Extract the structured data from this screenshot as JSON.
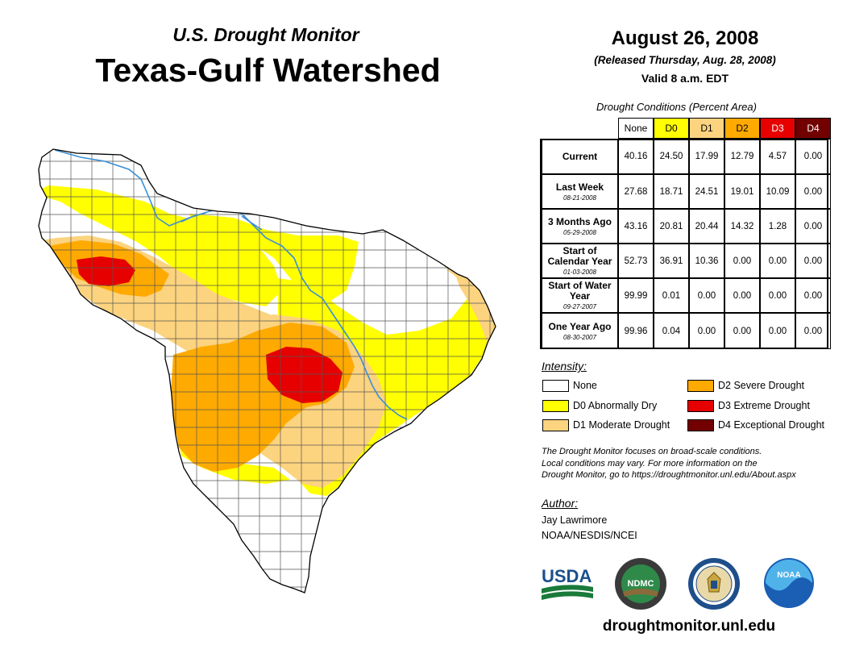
{
  "header": {
    "subtitle": "U.S. Drought Monitor",
    "title": "Texas-Gulf Watershed",
    "date": "August 26, 2008",
    "released": "(Released Thursday, Aug. 28, 2008)",
    "valid": "Valid 8 a.m. EDT"
  },
  "table": {
    "caption": "Drought Conditions (Percent Area)",
    "columns": [
      {
        "label": "None",
        "color": "#ffffff",
        "text_color": "#000000"
      },
      {
        "label": "D0",
        "color": "#ffff00",
        "text_color": "#000000"
      },
      {
        "label": "D1",
        "color": "#fcd37f",
        "text_color": "#000000"
      },
      {
        "label": "D2",
        "color": "#ffaa00",
        "text_color": "#000000"
      },
      {
        "label": "D3",
        "color": "#e60000",
        "text_color": "#ffffff"
      },
      {
        "label": "D4",
        "color": "#730000",
        "text_color": "#ffffff"
      }
    ],
    "rows": [
      {
        "label": "Current",
        "sub": "",
        "values": [
          "40.16",
          "24.50",
          "17.99",
          "12.79",
          "4.57",
          "0.00"
        ]
      },
      {
        "label": "Last Week",
        "sub": "08-21-2008",
        "values": [
          "27.68",
          "18.71",
          "24.51",
          "19.01",
          "10.09",
          "0.00"
        ]
      },
      {
        "label": "3 Months Ago",
        "sub": "05-29-2008",
        "values": [
          "43.16",
          "20.81",
          "20.44",
          "14.32",
          "1.28",
          "0.00"
        ]
      },
      {
        "label": "Start of Calendar Year",
        "sub": "01-03-2008",
        "values": [
          "52.73",
          "36.91",
          "10.36",
          "0.00",
          "0.00",
          "0.00"
        ]
      },
      {
        "label": "Start of Water Year",
        "sub": "09-27-2007",
        "values": [
          "99.99",
          "0.01",
          "0.00",
          "0.00",
          "0.00",
          "0.00"
        ]
      },
      {
        "label": "One Year Ago",
        "sub": "08-30-2007",
        "values": [
          "99.96",
          "0.04",
          "0.00",
          "0.00",
          "0.00",
          "0.00"
        ]
      }
    ]
  },
  "legend": {
    "title": "Intensity:",
    "items": [
      {
        "label": "None",
        "color": "#ffffff"
      },
      {
        "label": "D0 Abnormally Dry",
        "color": "#ffff00"
      },
      {
        "label": "D1 Moderate Drought",
        "color": "#fcd37f"
      },
      {
        "label": "D2 Severe Drought",
        "color": "#ffaa00"
      },
      {
        "label": "D3 Extreme Drought",
        "color": "#e60000"
      },
      {
        "label": "D4 Exceptional Drought",
        "color": "#730000"
      }
    ]
  },
  "note": {
    "line1": "The Drought Monitor focuses on broad-scale conditions.",
    "line2": "Local conditions may vary. For more information on the",
    "line3": "Drought Monitor, go to https://droughtmonitor.unl.edu/About.aspx"
  },
  "author": {
    "label": "Author:",
    "name": "Jay Lawrimore",
    "org": "NOAA/NESDIS/NCEI"
  },
  "logos": {
    "usda": "USDA",
    "ndmc": "NDMC",
    "noaa": "NOAA"
  },
  "footer": {
    "url": "droughtmonitor.unl.edu"
  },
  "map_colors": {
    "none": "#ffffff",
    "d0": "#ffff00",
    "d1": "#fcd37f",
    "d2": "#ffaa00",
    "d3": "#e60000",
    "river": "#3a8fd6",
    "border": "#555555"
  }
}
